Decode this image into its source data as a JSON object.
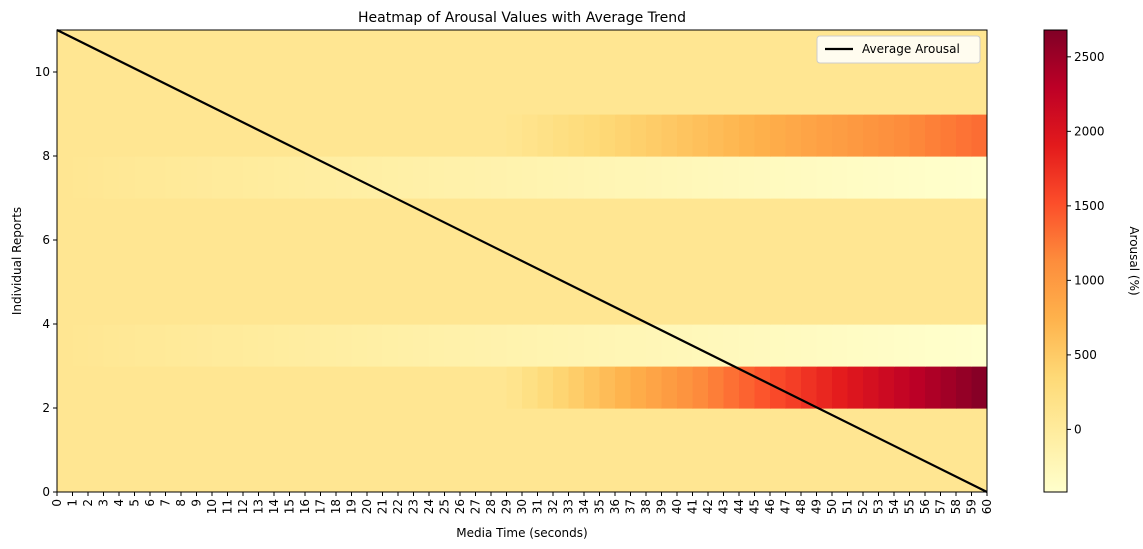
{
  "chart_data": {
    "type": "heatmap",
    "title": "Heatmap of Arousal Values with Average Trend",
    "xlabel": "Media Time (seconds)",
    "ylabel": "Individual Reports",
    "colorbar_label": "Arousal (%)",
    "colormap": "YlOrRd",
    "x_ticks": [
      0,
      1,
      2,
      3,
      4,
      5,
      6,
      7,
      8,
      9,
      10,
      11,
      12,
      13,
      14,
      15,
      16,
      17,
      18,
      19,
      20,
      21,
      22,
      23,
      24,
      25,
      26,
      27,
      28,
      29,
      30,
      31,
      32,
      33,
      34,
      35,
      36,
      37,
      38,
      39,
      40,
      41,
      42,
      43,
      44,
      45,
      46,
      47,
      48,
      49,
      50,
      51,
      52,
      53,
      54,
      55,
      56,
      57,
      58,
      59,
      60
    ],
    "y_ticks": [
      0,
      2,
      4,
      6,
      8,
      10
    ],
    "colorbar_ticks": [
      0,
      500,
      1000,
      1500,
      2000,
      2500
    ],
    "xlim": [
      0,
      60
    ],
    "ylim": [
      0,
      11
    ],
    "color_range": [
      -420,
      2680
    ],
    "rows": [
      {
        "y": 0,
        "start": 100,
        "end": 100,
        "growth_start": 0
      },
      {
        "y": 1,
        "start": 100,
        "end": 100,
        "growth_start": 0
      },
      {
        "y": 2,
        "start": 100,
        "end": 2680,
        "growth_start": 29
      },
      {
        "y": 3,
        "start": 100,
        "end": -420,
        "growth_start": 0
      },
      {
        "y": 4,
        "start": 100,
        "end": 100,
        "growth_start": 0
      },
      {
        "y": 5,
        "start": 100,
        "end": 100,
        "growth_start": 0
      },
      {
        "y": 6,
        "start": 100,
        "end": 100,
        "growth_start": 0
      },
      {
        "y": 7,
        "start": 100,
        "end": -420,
        "growth_start": 0
      },
      {
        "y": 8,
        "start": 100,
        "end": 1350,
        "growth_start": 29
      },
      {
        "y": 9,
        "start": 100,
        "end": 100,
        "growth_start": 0
      },
      {
        "y": 10,
        "start": 100,
        "end": 100,
        "growth_start": 0
      }
    ],
    "series": [
      {
        "name": "Average Arousal",
        "type": "line",
        "color": "#000000",
        "x": [
          0,
          60
        ],
        "y": [
          11,
          0
        ]
      }
    ],
    "legend": {
      "entries": [
        "Average Arousal"
      ],
      "position": "top-right"
    }
  }
}
